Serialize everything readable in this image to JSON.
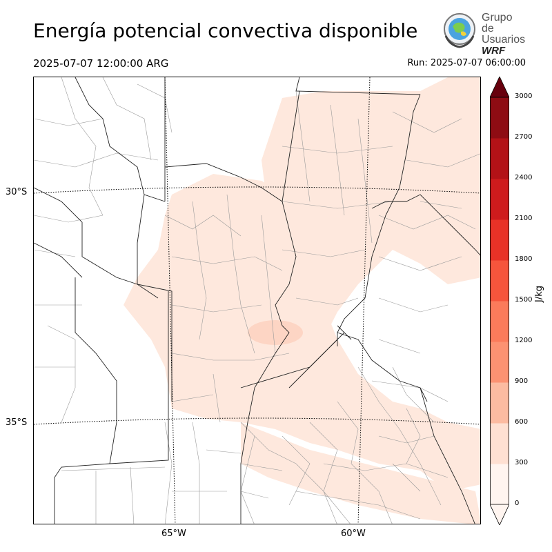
{
  "header": {
    "title": "Energía potencial convectiva disponible",
    "valid_time": "2025-07-07 12:00:00 ARG",
    "run_time": "Run: 2025-07-07 06:00:00"
  },
  "logo": {
    "line1": "Grupo de",
    "line2": "Usuarios",
    "line3": "WRF"
  },
  "map": {
    "lat_labels": [
      "30°S",
      "35°S"
    ],
    "lon_labels": [
      "65°W",
      "60°W"
    ]
  },
  "colorbar": {
    "unit": "J/kg",
    "ticks": [
      "0",
      "300",
      "600",
      "900",
      "1200",
      "1500",
      "1800",
      "2100",
      "2400",
      "2700",
      "3000"
    ],
    "colors": [
      "#fff5f0",
      "#fee0d2",
      "#fcbba1",
      "#fc9272",
      "#fb7b5b",
      "#f6553c",
      "#e83227",
      "#cf1b1d",
      "#b31217",
      "#8e0c13",
      "#67000d"
    ],
    "extend": "both"
  }
}
